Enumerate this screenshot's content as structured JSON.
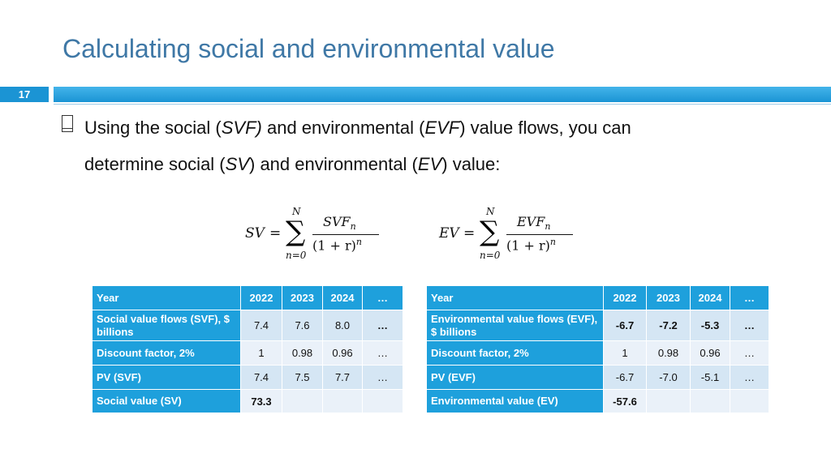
{
  "header": {
    "title": "Calculating social and environmental value",
    "slide_number": "17"
  },
  "bullet": {
    "line1": [
      {
        "text": "Using the social (",
        "italic": false
      },
      {
        "text": "SVF)",
        "italic": true
      },
      {
        "text": " and environmental (",
        "italic": false
      },
      {
        "text": "EVF",
        "italic": true
      },
      {
        "text": ") value flows, you can",
        "italic": false
      }
    ],
    "line2": [
      {
        "text": "determine social (",
        "italic": false
      },
      {
        "text": "SV",
        "italic": true
      },
      {
        "text": ") and environmental (",
        "italic": false
      },
      {
        "text": "EV",
        "italic": true
      },
      {
        "text": ") value:",
        "italic": false
      }
    ]
  },
  "formulas": [
    {
      "lhs": "SV",
      "equals": "=",
      "upper": "N",
      "lower": "n=0",
      "numerator": "SVF",
      "numerator_sub": "n",
      "denominator": "(1 + r)",
      "denominator_exp": "n"
    },
    {
      "lhs": "EV",
      "equals": "=",
      "upper": "N",
      "lower": "n=0",
      "numerator": "EVF",
      "numerator_sub": "n",
      "denominator": "(1 + r)",
      "denominator_exp": "n"
    }
  ],
  "tables": [
    {
      "rows": [
        [
          "Year",
          "2022",
          "2023",
          "2024",
          "…"
        ],
        [
          "Social value flows (SVF), $ billions",
          "7.4",
          "7.6",
          "8.0",
          "…"
        ],
        [
          "Discount factor, 2%",
          "1",
          "0.98",
          "0.96",
          "…"
        ],
        [
          "PV (SVF)",
          "7.4",
          "7.5",
          "7.7",
          "…"
        ],
        [
          "Social value (SV)",
          "73.3",
          null,
          null,
          null
        ]
      ]
    },
    {
      "rows": [
        [
          "Year",
          "2022",
          "2023",
          "2024",
          "…"
        ],
        [
          "Environmental value flows (EVF), $ billions",
          "-6.7",
          "-7.2",
          "-5.3",
          "…"
        ],
        [
          "Discount factor, 2%",
          "1",
          "0.98",
          "0.96",
          "…"
        ],
        [
          "PV (EVF)",
          "-6.7",
          "-7.0",
          "-5.1",
          "…"
        ],
        [
          "Environmental value (EV)",
          "-57.6",
          null,
          null,
          null
        ]
      ]
    }
  ]
}
